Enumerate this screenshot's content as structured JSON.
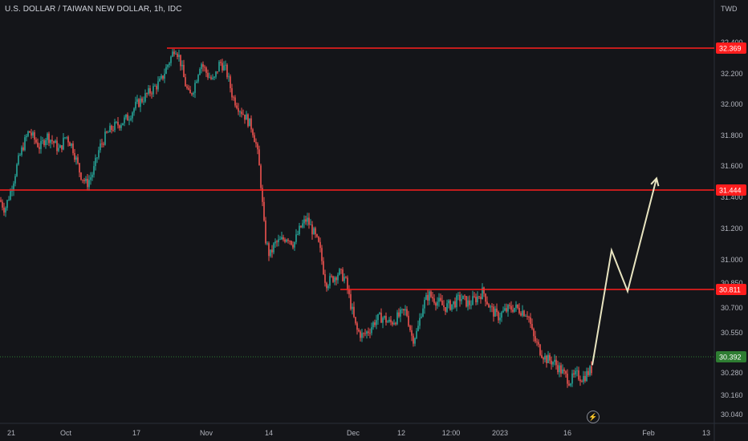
{
  "title": "U.S. DOLLAR / TAIWAN NEW DOLLAR, 1h, IDC",
  "currency": "TWD",
  "bolt_icon": "lightning-icon",
  "colors": {
    "background": "#141519",
    "up": "#26a69a",
    "down": "#ef5350",
    "hline": "#ff1e1e",
    "arrow": "#e8e4c0",
    "current_price": "#2e7d32"
  },
  "chart_data": {
    "type": "candlestick",
    "y_axis": {
      "range": [
        30.0,
        32.46
      ],
      "ticks": [
        "32.400",
        "32.200",
        "32.000",
        "31.800",
        "31.600",
        "31.400",
        "31.200",
        "31.000",
        "30.850",
        "30.700",
        "30.550",
        "30.280",
        "30.160",
        "30.040"
      ]
    },
    "x_axis": {
      "ticks": [
        "21",
        "Oct",
        "17",
        "Nov",
        "14",
        "Dec",
        "12",
        "12:00",
        "2023",
        "16",
        "Feb",
        "13"
      ]
    },
    "price_path": [
      [
        0,
        31.38
      ],
      [
        6,
        31.32
      ],
      [
        14,
        31.45
      ],
      [
        22,
        31.62
      ],
      [
        28,
        31.72
      ],
      [
        36,
        31.83
      ],
      [
        42,
        31.78
      ],
      [
        50,
        31.72
      ],
      [
        58,
        31.8
      ],
      [
        66,
        31.76
      ],
      [
        74,
        31.7
      ],
      [
        82,
        31.8
      ],
      [
        90,
        31.73
      ],
      [
        100,
        31.55
      ],
      [
        108,
        31.48
      ],
      [
        116,
        31.56
      ],
      [
        124,
        31.72
      ],
      [
        132,
        31.8
      ],
      [
        140,
        31.85
      ],
      [
        150,
        31.88
      ],
      [
        160,
        31.92
      ],
      [
        170,
        32.0
      ],
      [
        180,
        32.05
      ],
      [
        190,
        32.1
      ],
      [
        200,
        32.15
      ],
      [
        208,
        32.25
      ],
      [
        214,
        32.32
      ],
      [
        218,
        32.38
      ],
      [
        224,
        32.3
      ],
      [
        230,
        32.15
      ],
      [
        236,
        32.05
      ],
      [
        242,
        32.12
      ],
      [
        250,
        32.28
      ],
      [
        258,
        32.2
      ],
      [
        266,
        32.15
      ],
      [
        274,
        32.28
      ],
      [
        282,
        32.22
      ],
      [
        290,
        32.05
      ],
      [
        298,
        31.98
      ],
      [
        306,
        31.92
      ],
      [
        314,
        31.85
      ],
      [
        320,
        31.72
      ],
      [
        324,
        31.55
      ],
      [
        330,
        31.15
      ],
      [
        336,
        31.02
      ],
      [
        342,
        31.1
      ],
      [
        350,
        31.12
      ],
      [
        358,
        31.15
      ],
      [
        366,
        31.1
      ],
      [
        374,
        31.2
      ],
      [
        382,
        31.26
      ],
      [
        390,
        31.18
      ],
      [
        398,
        31.08
      ],
      [
        406,
        30.85
      ],
      [
        414,
        30.88
      ],
      [
        422,
        30.92
      ],
      [
        430,
        30.88
      ],
      [
        436,
        30.74
      ],
      [
        444,
        30.56
      ],
      [
        452,
        30.52
      ],
      [
        460,
        30.56
      ],
      [
        468,
        30.62
      ],
      [
        476,
        30.64
      ],
      [
        486,
        30.6
      ],
      [
        496,
        30.64
      ],
      [
        506,
        30.68
      ],
      [
        514,
        30.5
      ],
      [
        520,
        30.55
      ],
      [
        526,
        30.7
      ],
      [
        534,
        30.78
      ],
      [
        544,
        30.74
      ],
      [
        554,
        30.7
      ],
      [
        564,
        30.72
      ],
      [
        574,
        30.76
      ],
      [
        584,
        30.72
      ],
      [
        594,
        30.76
      ],
      [
        602,
        30.8
      ],
      [
        610,
        30.7
      ],
      [
        620,
        30.64
      ],
      [
        630,
        30.68
      ],
      [
        640,
        30.7
      ],
      [
        650,
        30.68
      ],
      [
        658,
        30.66
      ],
      [
        664,
        30.52
      ],
      [
        672,
        30.44
      ],
      [
        680,
        30.38
      ],
      [
        690,
        30.36
      ],
      [
        700,
        30.3
      ],
      [
        710,
        30.24
      ],
      [
        718,
        30.28
      ],
      [
        726,
        30.26
      ],
      [
        734,
        30.3
      ],
      [
        738,
        30.32
      ]
    ],
    "horizontal_levels": [
      {
        "price": 32.369,
        "label": "32.369",
        "x_start": 208
      },
      {
        "price": 31.444,
        "label": "31.444",
        "x_start": 0
      },
      {
        "price": 30.811,
        "label": "30.811",
        "x_start": 424
      }
    ],
    "current_price": {
      "value": 30.392,
      "label": "30.392"
    },
    "projection": [
      [
        738,
        30.34
      ],
      [
        762,
        31.06
      ],
      [
        782,
        30.8
      ],
      [
        818,
        31.52
      ]
    ]
  }
}
